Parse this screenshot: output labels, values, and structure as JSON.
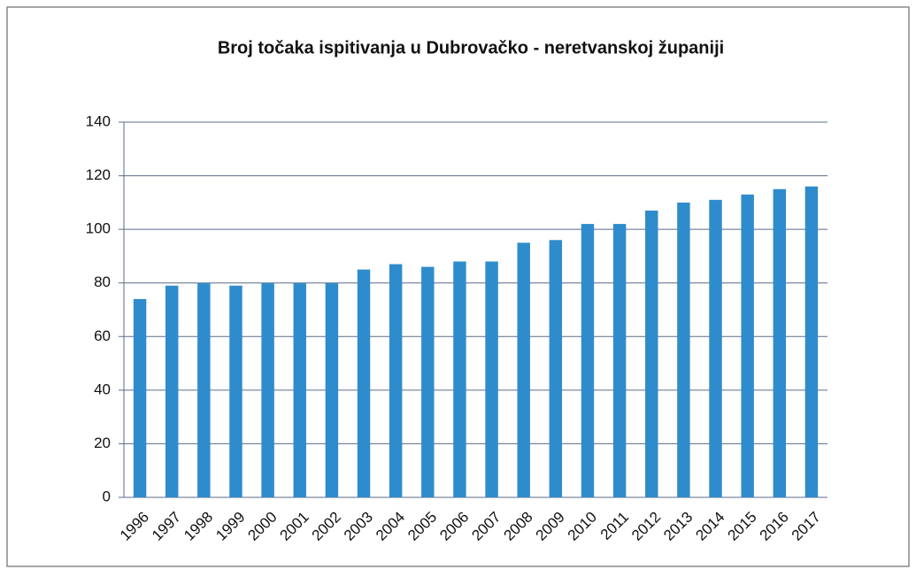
{
  "chart_data": {
    "type": "bar",
    "title": "Broj točaka ispitivanja u Dubrovačko - neretvanskoj županiji",
    "categories": [
      "1996",
      "1997",
      "1998",
      "1999",
      "2000",
      "2001",
      "2002",
      "2003",
      "2004",
      "2005",
      "2006",
      "2007",
      "2008",
      "2009",
      "2010",
      "2011",
      "2012",
      "2013",
      "2014",
      "2015",
      "2016",
      "2017"
    ],
    "values": [
      74,
      79,
      80,
      79,
      80,
      80,
      80,
      85,
      87,
      86,
      88,
      88,
      95,
      96,
      102,
      102,
      107,
      110,
      111,
      113,
      115,
      116
    ],
    "color": "#2f8ccc",
    "ylim": [
      0,
      140
    ],
    "yticks": [
      0,
      20,
      40,
      60,
      80,
      100,
      120,
      140
    ],
    "grid": true
  }
}
